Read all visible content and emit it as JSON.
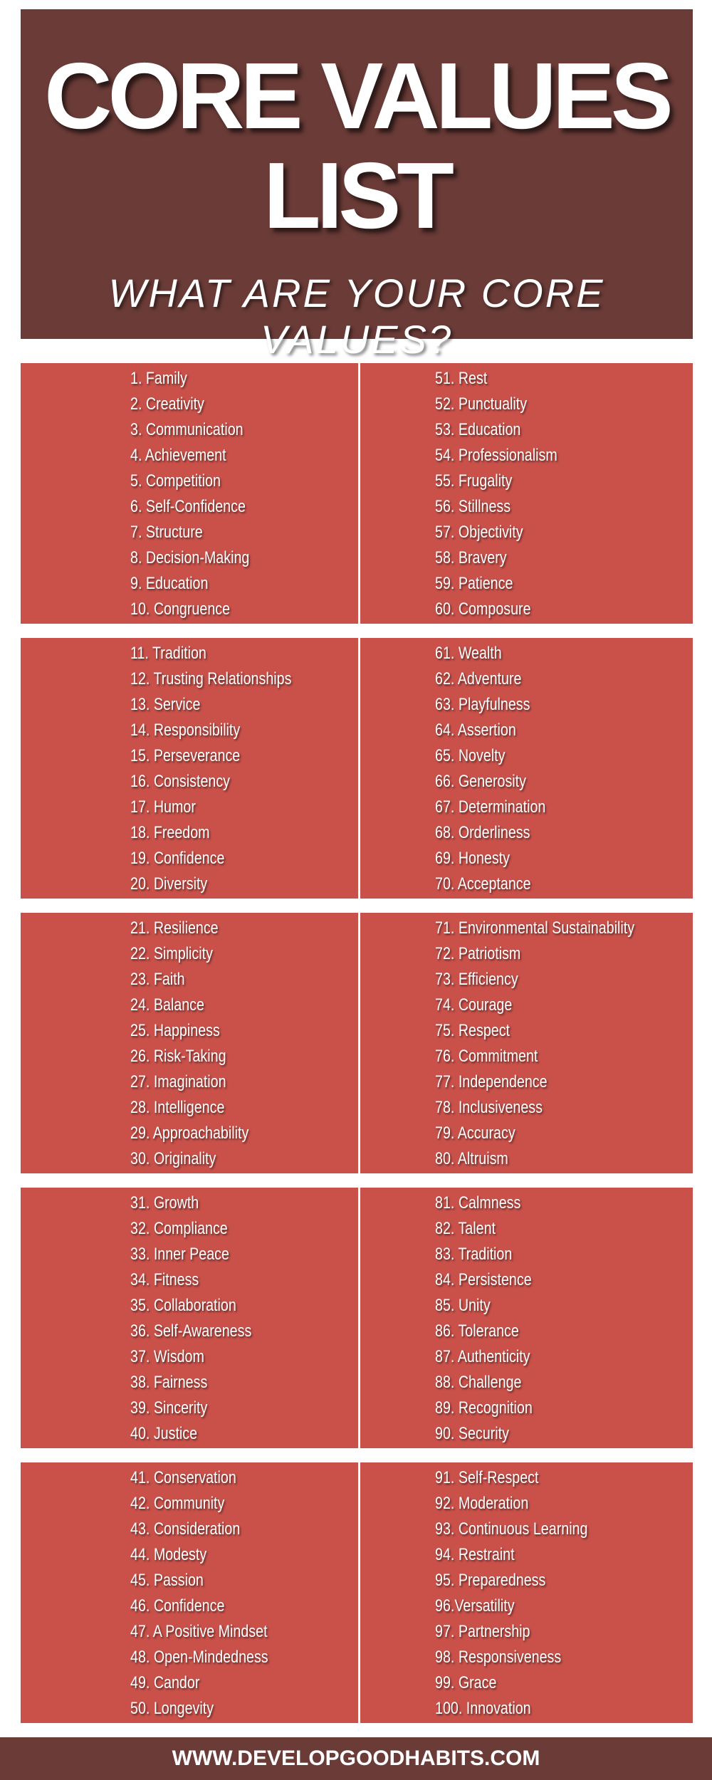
{
  "header": {
    "title_lines": [
      "CORE VALUES",
      "LIST"
    ],
    "subtitle": "WHAT ARE YOUR CORE VALUES?"
  },
  "blocks": [
    {
      "left": [
        "1. Family",
        "2. Creativity",
        "3. Communication",
        "4. Achievement",
        "5. Competition",
        "6. Self-Confidence",
        "7. Structure",
        "8. Decision-Making",
        "9. Education",
        "10. Congruence"
      ],
      "right": [
        "51. Rest",
        "52. Punctuality",
        "53. Education",
        "54. Professionalism",
        "55. Frugality",
        "56. Stillness",
        "57. Objectivity",
        "58. Bravery",
        "59. Patience",
        "60. Composure"
      ]
    },
    {
      "left": [
        "11. Tradition",
        "12. Trusting Relationships",
        "13. Service",
        "14. Responsibility",
        "15. Perseverance",
        "16. Consistency",
        "17. Humor",
        "18. Freedom",
        "19. Confidence",
        "20. Diversity"
      ],
      "right": [
        "61. Wealth",
        "62. Adventure",
        "63. Playfulness",
        "64. Assertion",
        "65. Novelty",
        "66. Generosity",
        "67. Determination",
        "68. Orderliness",
        "69. Honesty",
        "70. Acceptance"
      ]
    },
    {
      "left": [
        "21. Resilience",
        "22. Simplicity",
        "23. Faith",
        "24. Balance",
        "25. Happiness",
        "26. Risk-Taking",
        "27. Imagination",
        "28. Intelligence",
        "29. Approachability",
        "30. Originality"
      ],
      "right": [
        "71. Environmental Sustainability",
        "72. Patriotism",
        "73. Efficiency",
        "74. Courage",
        "75. Respect",
        "76. Commitment",
        "77. Independence",
        "78. Inclusiveness",
        "79. Accuracy",
        "80. Altruism"
      ]
    },
    {
      "left": [
        "31. Growth",
        "32. Compliance",
        "33. Inner Peace",
        "34. Fitness",
        "35. Collaboration",
        "36. Self-Awareness",
        "37. Wisdom",
        "38. Fairness",
        "39. Sincerity",
        "40. Justice"
      ],
      "right": [
        "81. Calmness",
        "82. Talent",
        "83. Tradition",
        "84. Persistence",
        "85. Unity",
        "86. Tolerance",
        "87. Authenticity",
        "88. Challenge",
        "89. Recognition",
        "90. Security"
      ]
    },
    {
      "left": [
        "41. Conservation",
        "42. Community",
        "43. Consideration",
        "44. Modesty",
        "45. Passion",
        "46. Confidence",
        "47. A Positive Mindset",
        "48. Open-Mindedness",
        "49. Candor",
        "50. Longevity"
      ],
      "right": [
        "91. Self-Respect",
        "92. Moderation",
        "93. Continuous Learning",
        "94. Restraint",
        "95. Preparedness",
        "96.Versatility",
        "97. Partnership",
        "98. Responsiveness",
        "99. Grace",
        "100. Innovation"
      ]
    }
  ],
  "footer": "WWW.DEVELOPGOODHABITS.COM"
}
